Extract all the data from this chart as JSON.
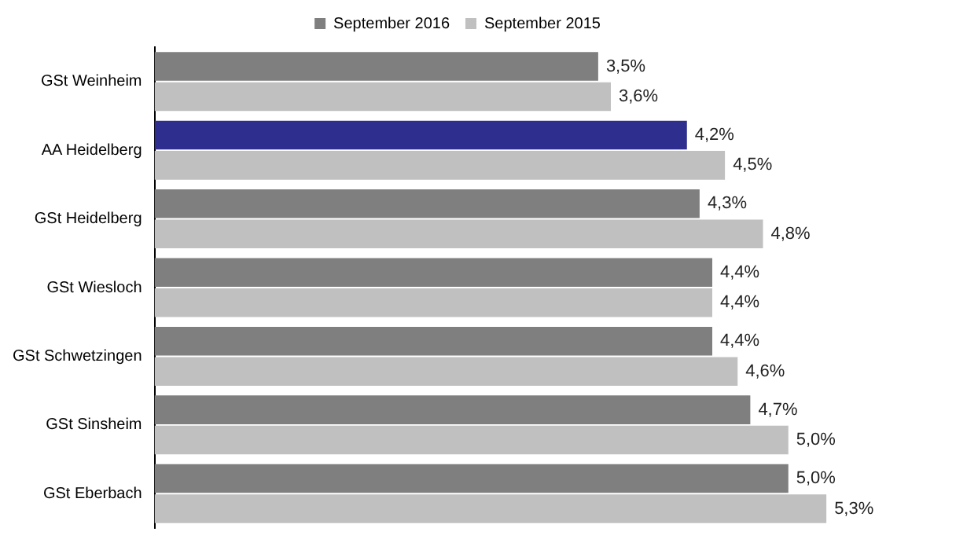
{
  "chart_data": {
    "type": "bar",
    "orientation": "horizontal",
    "legend": "top",
    "grid": false,
    "categories": [
      "GSt Weinheim",
      "AA Heidelberg",
      "GSt Heidelberg",
      "GSt Wiesloch",
      "GSt Schwetzingen",
      "GSt Sinsheim",
      "GSt Eberbach"
    ],
    "series": [
      {
        "name": "September 2016",
        "color": "#7f7f7f",
        "colors": [
          "#7f7f7f",
          "#2e2e8f",
          "#7f7f7f",
          "#7f7f7f",
          "#7f7f7f",
          "#7f7f7f",
          "#7f7f7f"
        ],
        "values": [
          3.5,
          4.2,
          4.3,
          4.4,
          4.4,
          4.7,
          5.0
        ],
        "value_labels": [
          "3,5%",
          "4,2%",
          "4,3%",
          "4,4%",
          "4,4%",
          "4,7%",
          "5,0%"
        ]
      },
      {
        "name": "September 2015",
        "color": "#c0c0c0",
        "values": [
          3.6,
          4.5,
          4.8,
          4.4,
          4.6,
          5.0,
          5.3
        ],
        "value_labels": [
          "3,6%",
          "4,5%",
          "4,8%",
          "4,4%",
          "4,6%",
          "5,0%",
          "5,3%"
        ]
      }
    ],
    "tick_labels": "y"
  }
}
